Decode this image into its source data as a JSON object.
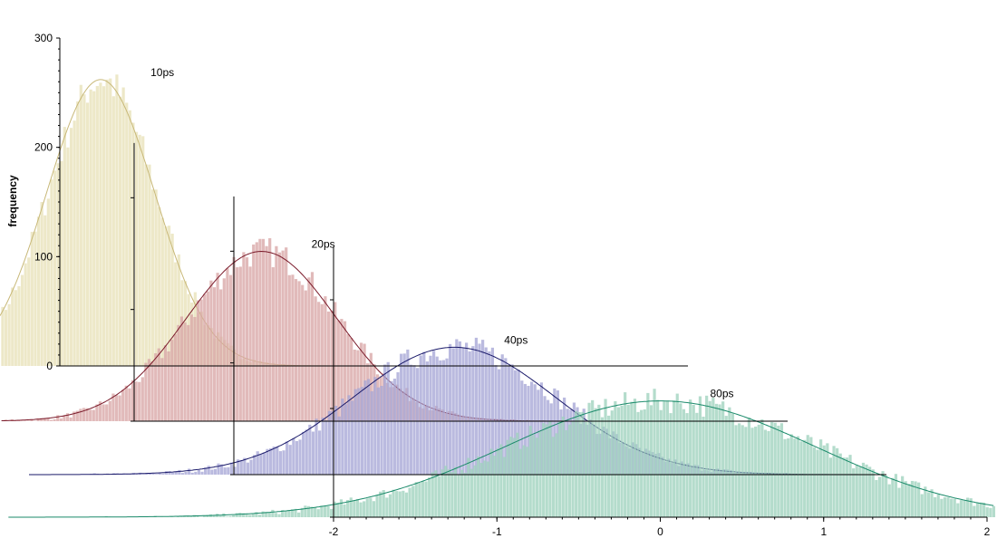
{
  "chart_data": {
    "type": "bar",
    "title": "",
    "ylabel": "frequency",
    "xlabel": "",
    "yticks": [
      "0",
      "100",
      "200",
      "300"
    ],
    "xticks": [
      "-2",
      "-1",
      "0",
      "1",
      "2"
    ],
    "ylim": [
      0,
      300
    ],
    "xlim": [
      -2,
      2
    ],
    "grid": false,
    "legend": "none",
    "series": [
      {
        "name": "10ps",
        "color_fill": "#e8e2b8",
        "color_line": "#c8b878",
        "fit": {
          "mu": -1.75,
          "sigma": 0.33,
          "peak": 262
        },
        "values_approx": [
          0,
          0,
          1,
          3,
          8,
          22,
          55,
          112,
          178,
          232,
          262,
          240,
          180,
          110,
          55,
          22,
          8,
          3,
          1,
          0
        ]
      },
      {
        "name": "20ps",
        "color_fill": "#d8a7a7",
        "color_line": "#7a1a2a",
        "fit": {
          "mu": -1.22,
          "sigma": 0.46,
          "peak": 152
        },
        "values_approx": [
          0,
          1,
          3,
          8,
          18,
          38,
          68,
          104,
          136,
          152,
          140,
          108,
          70,
          38,
          18,
          7,
          2,
          1,
          0,
          0
        ]
      },
      {
        "name": "40ps",
        "color_fill": "#a6a6d6",
        "color_line": "#1a1a6a",
        "fit": {
          "mu": -0.65,
          "sigma": 0.62,
          "peak": 114
        },
        "values_approx": [
          1,
          3,
          8,
          18,
          34,
          56,
          80,
          100,
          112,
          114,
          104,
          84,
          60,
          38,
          20,
          9,
          3,
          1,
          0,
          0
        ]
      },
      {
        "name": "80ps",
        "color_fill": "#9fd2be",
        "color_line": "#1a8a6a",
        "fit": {
          "mu": 0.0,
          "sigma": 0.95,
          "peak": 107
        },
        "values_approx": [
          10,
          18,
          30,
          45,
          62,
          78,
          92,
          102,
          107,
          105,
          96,
          82,
          66,
          50,
          35,
          22,
          13,
          7,
          3,
          1
        ]
      }
    ]
  }
}
